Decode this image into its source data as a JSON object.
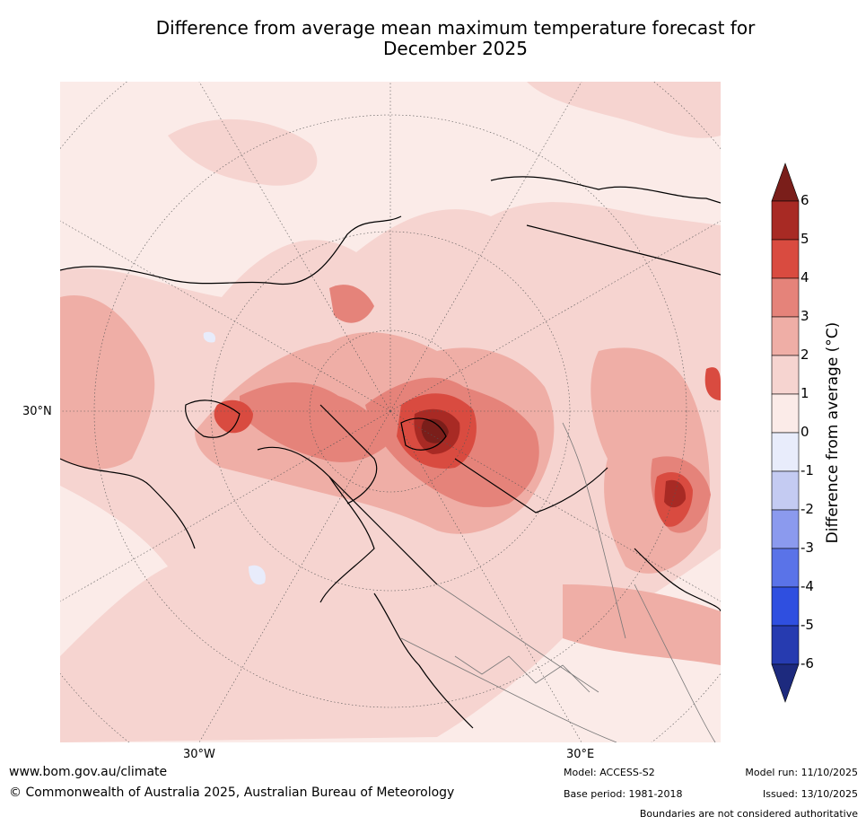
{
  "title": {
    "line1": "Difference from average mean maximum temperature forecast for",
    "line2": "December 2025"
  },
  "map": {
    "lat_label": "30°N",
    "lon_labels": [
      "30°W",
      "30°E"
    ]
  },
  "colorbar": {
    "label": "Difference from average (°C)",
    "ticks": [
      "6",
      "5",
      "4",
      "3",
      "2",
      "1",
      "0",
      "-1",
      "-2",
      "-3",
      "-4",
      "-5",
      "-6"
    ],
    "colors": {
      "above_6": "#7a1e1a",
      "5_6": "#a82a24",
      "4_5": "#d94b40",
      "3_4": "#e5837a",
      "2_3": "#efaea6",
      "1_2": "#f6d4d0",
      "0_1": "#fbebe8",
      "-1_0": "#e8ecfb",
      "-2_-1": "#c4cbf2",
      "-3_-2": "#8b9aee",
      "-4_-3": "#5a73e8",
      "-5_-4": "#2f4fe0",
      "-6_-5": "#263bb0",
      "below_-6": "#1d2a7e"
    }
  },
  "footer": {
    "website": "www.bom.gov.au/climate",
    "copyright": "© Commonwealth of Australia 2025, Australian Bureau of Meteorology",
    "model": "Model: ACCESS-S2",
    "base_period": "Base period: 1981-2018",
    "model_run": "Model run: 11/10/2025",
    "issued": "Issued: 13/10/2025",
    "disclaimer": "Boundaries are not considered authoritative"
  }
}
